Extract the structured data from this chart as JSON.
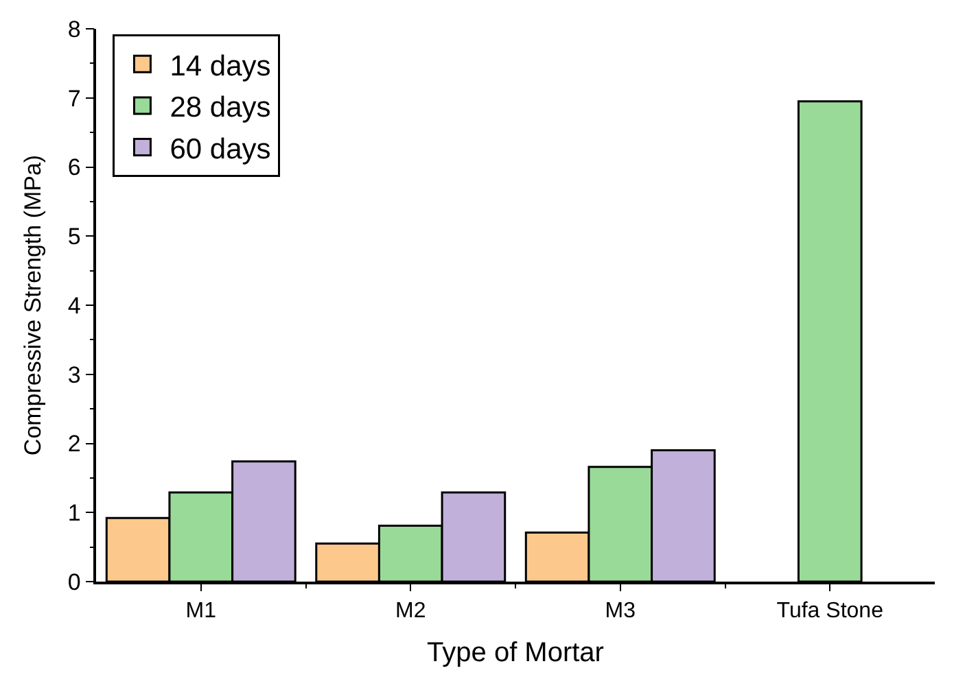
{
  "chart_data": {
    "type": "bar",
    "xlabel": "Type of Mortar",
    "ylabel": "Compressive Strength (MPa)",
    "categories": [
      "M1",
      "M2",
      "M3",
      "Tufa Stone"
    ],
    "series": [
      {
        "name": "14 days",
        "color": "#fdc88c",
        "values": [
          0.92,
          0.55,
          0.71,
          null
        ]
      },
      {
        "name": "28 days",
        "color": "#99da98",
        "values": [
          1.29,
          0.81,
          1.66,
          6.95
        ]
      },
      {
        "name": "60 days",
        "color": "#c1b0d9",
        "values": [
          1.74,
          1.29,
          1.9,
          null
        ]
      }
    ],
    "ylim": [
      0,
      8
    ],
    "yticks": [
      0,
      1,
      2,
      3,
      4,
      5,
      6,
      7,
      8
    ],
    "legend": "top left"
  }
}
